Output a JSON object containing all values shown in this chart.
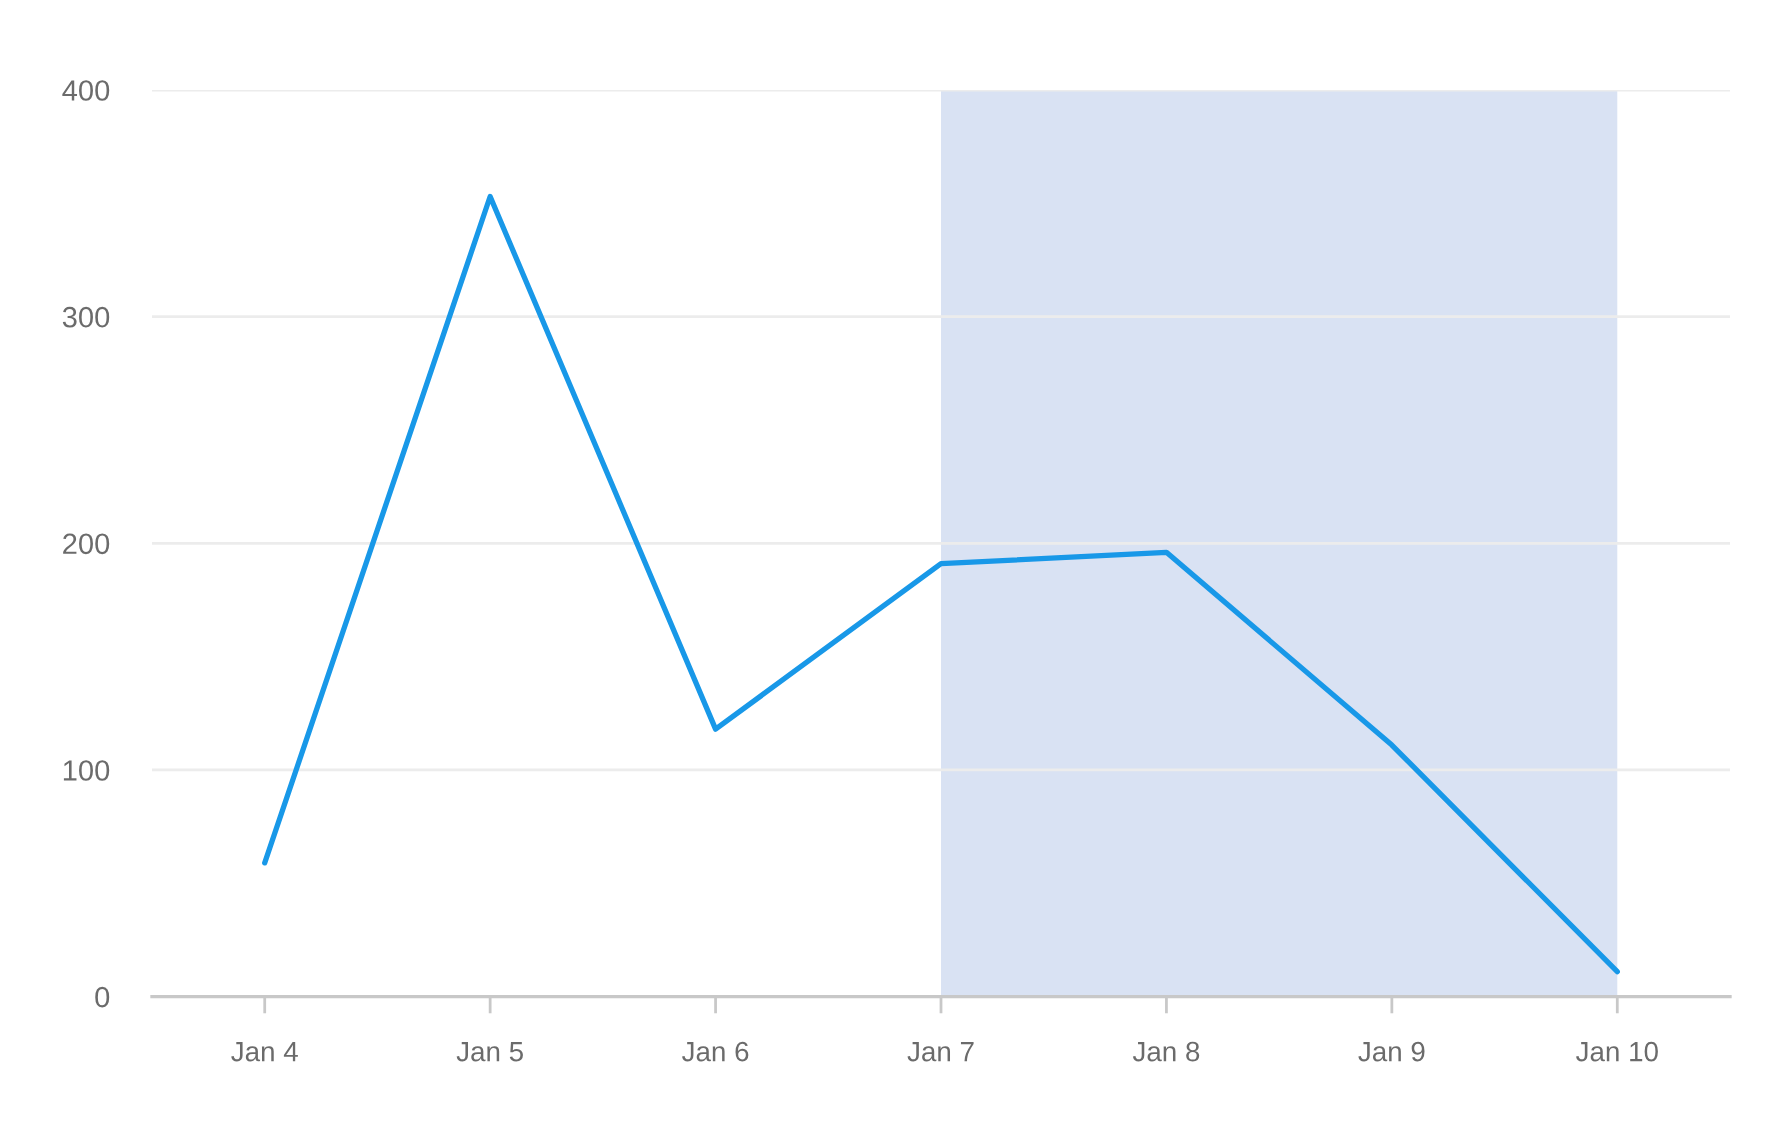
{
  "chart_data": {
    "type": "line",
    "categories": [
      "Jan 4",
      "Jan 5",
      "Jan 6",
      "Jan 7",
      "Jan 8",
      "Jan 9",
      "Jan 10"
    ],
    "series": [
      {
        "color": "#1898e8",
        "values": [
          59,
          353,
          118,
          191,
          196,
          111,
          11
        ]
      }
    ],
    "ylim": [
      0,
      400
    ],
    "yticks": [
      0,
      100,
      200,
      300,
      400
    ],
    "bands": [
      {
        "axis": "x",
        "from": "Jan 7",
        "to": "Jan 10",
        "color": "#d9e2f3"
      }
    ],
    "grid": "y",
    "marker": "none",
    "line_style": "solid"
  }
}
